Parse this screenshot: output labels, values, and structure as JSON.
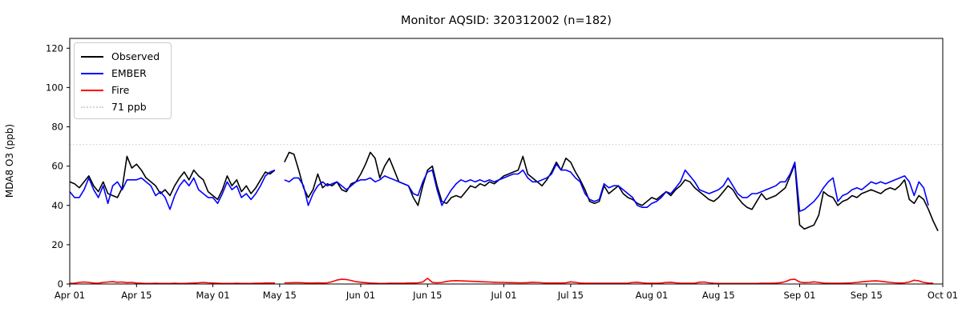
{
  "title": "Monitor AQSID: 320312002 (n=182)",
  "ylabel": "MDA8 O3 (ppb)",
  "legend": {
    "items": [
      {
        "label": "Observed",
        "color": "#000000",
        "dash": "solid"
      },
      {
        "label": "EMBER",
        "color": "#0000ff",
        "dash": "solid"
      },
      {
        "label": "Fire",
        "color": "#ff0000",
        "dash": "solid"
      },
      {
        "label": "71 ppb",
        "color": "#d3d3d3",
        "dash": "dotted"
      }
    ]
  },
  "chart_data": {
    "type": "line",
    "title": "Monitor AQSID: 320312002 (n=182)",
    "xlabel": "",
    "ylabel": "MDA8 O3 (ppb)",
    "ylim": [
      0,
      125
    ],
    "yticks": [
      0,
      20,
      40,
      60,
      80,
      100,
      120
    ],
    "x_days_total": 183,
    "x_start_date": "Apr 01",
    "xtick_labels": [
      "Apr 01",
      "Apr 15",
      "May 01",
      "May 15",
      "Jun 01",
      "Jun 15",
      "Jul 01",
      "Jul 15",
      "Aug 01",
      "Aug 15",
      "Sep 01",
      "Sep 15",
      "Oct 01"
    ],
    "xtick_days": [
      0,
      14,
      30,
      44,
      61,
      75,
      91,
      105,
      122,
      136,
      153,
      167,
      183
    ],
    "grid": false,
    "legend_position": "upper left",
    "threshold": {
      "value": 71,
      "label": "71 ppb",
      "color": "#d3d3d3",
      "style": "dotted"
    },
    "missing_day": "May 15",
    "series": [
      {
        "name": "Observed",
        "color": "#000000",
        "values": [
          52,
          51,
          49,
          52,
          55,
          50,
          47,
          52,
          46,
          45,
          44,
          49,
          65,
          59,
          61,
          58,
          54,
          52,
          50,
          46,
          48,
          45,
          50,
          54,
          57,
          53,
          58,
          55,
          53,
          47,
          45,
          43,
          48,
          55,
          50,
          53,
          47,
          50,
          46,
          49,
          53,
          57,
          56,
          58,
          null,
          62,
          67,
          66,
          58,
          49,
          44,
          48,
          56,
          49,
          51,
          50,
          52,
          48,
          47,
          51,
          52,
          56,
          61,
          67,
          64,
          54,
          60,
          64,
          58,
          52,
          51,
          50,
          44,
          40,
          50,
          58,
          60,
          50,
          42,
          41,
          44,
          45,
          44,
          47,
          50,
          49,
          51,
          50,
          52,
          51,
          53,
          55,
          56,
          57,
          58,
          65,
          56,
          54,
          52,
          50,
          53,
          57,
          62,
          58,
          64,
          62,
          57,
          53,
          48,
          42,
          41,
          42,
          50,
          46,
          48,
          50,
          46,
          44,
          43,
          41,
          40,
          42,
          44,
          43,
          45,
          47,
          45,
          48,
          50,
          53,
          52,
          49,
          47,
          45,
          43,
          42,
          44,
          47,
          50,
          48,
          44,
          41,
          39,
          38,
          42,
          46,
          43,
          44,
          45,
          47,
          49,
          55,
          61,
          30,
          28,
          29,
          30,
          35,
          47,
          45,
          44,
          40,
          42,
          43,
          45,
          44,
          46,
          47,
          48,
          47,
          46,
          48,
          49,
          48,
          50,
          53,
          43,
          41,
          45,
          43,
          38,
          32,
          27
        ]
      },
      {
        "name": "EMBER",
        "color": "#0000ff",
        "values": [
          47,
          44,
          44,
          48,
          54,
          48,
          44,
          50,
          41,
          50,
          52,
          48,
          53,
          53,
          53,
          54,
          52,
          50,
          45,
          47,
          44,
          38,
          45,
          50,
          53,
          50,
          54,
          48,
          46,
          44,
          44,
          41,
          46,
          52,
          48,
          50,
          44,
          46,
          43,
          46,
          50,
          55,
          57,
          58,
          null,
          53,
          52,
          54,
          54,
          50,
          40,
          46,
          50,
          52,
          50,
          51,
          52,
          50,
          48,
          50,
          52,
          53,
          53,
          54,
          52,
          53,
          55,
          54,
          53,
          52,
          51,
          50,
          46,
          45,
          52,
          57,
          58,
          48,
          40,
          44,
          48,
          51,
          53,
          52,
          53,
          52,
          53,
          52,
          53,
          52,
          53,
          54,
          55,
          56,
          56,
          58,
          54,
          52,
          52,
          53,
          54,
          56,
          61,
          58,
          58,
          57,
          54,
          52,
          46,
          43,
          42,
          43,
          51,
          49,
          50,
          50,
          48,
          46,
          44,
          40,
          39,
          39,
          41,
          42,
          44,
          47,
          46,
          49,
          52,
          58,
          55,
          52,
          48,
          47,
          46,
          47,
          48,
          50,
          54,
          50,
          46,
          44,
          44,
          46,
          46,
          47,
          48,
          49,
          50,
          52,
          52,
          56,
          62,
          37,
          38,
          40,
          42,
          45,
          49,
          52,
          54,
          42,
          45,
          46,
          48,
          49,
          48,
          50,
          52,
          51,
          52,
          51,
          52,
          53,
          54,
          55,
          52,
          45,
          52,
          49,
          40,
          null,
          null
        ]
      },
      {
        "name": "Fire",
        "color": "#ff0000",
        "values": [
          0.3,
          0.4,
          0.8,
          1.0,
          0.8,
          0.5,
          0.4,
          0.8,
          1.0,
          1.2,
          0.9,
          1.0,
          0.7,
          0.8,
          0.5,
          0.4,
          0.3,
          0.3,
          0.4,
          0.3,
          0.3,
          0.3,
          0.4,
          0.3,
          0.3,
          0.4,
          0.5,
          0.6,
          0.8,
          0.6,
          0.5,
          0.4,
          0.3,
          0.3,
          0.3,
          0.4,
          0.3,
          0.3,
          0.3,
          0.4,
          0.4,
          0.5,
          0.5,
          0.5,
          null,
          0.6,
          0.6,
          0.7,
          0.7,
          0.6,
          0.5,
          0.5,
          0.6,
          0.5,
          0.6,
          1.2,
          2.0,
          2.4,
          2.3,
          1.8,
          1.2,
          0.9,
          0.7,
          0.5,
          0.4,
          0.3,
          0.3,
          0.4,
          0.4,
          0.4,
          0.4,
          0.5,
          0.5,
          0.6,
          1.0,
          2.9,
          0.8,
          0.6,
          0.8,
          1.3,
          1.6,
          1.7,
          1.6,
          1.5,
          1.4,
          1.3,
          1.2,
          1.1,
          1.0,
          0.9,
          0.8,
          0.8,
          0.7,
          0.7,
          0.6,
          0.6,
          0.7,
          0.9,
          0.8,
          0.6,
          0.5,
          0.5,
          0.5,
          0.5,
          0.6,
          1.1,
          0.8,
          0.5,
          0.4,
          0.4,
          0.4,
          0.4,
          0.4,
          0.4,
          0.4,
          0.4,
          0.4,
          0.4,
          0.8,
          0.9,
          0.6,
          0.4,
          0.4,
          0.4,
          0.5,
          0.8,
          0.9,
          0.6,
          0.4,
          0.4,
          0.4,
          0.4,
          0.9,
          1.0,
          0.6,
          0.4,
          0.3,
          0.3,
          0.3,
          0.3,
          0.3,
          0.3,
          0.3,
          0.3,
          0.3,
          0.4,
          0.4,
          0.4,
          0.5,
          0.7,
          1.2,
          2.2,
          2.4,
          1.0,
          0.7,
          0.8,
          1.1,
          0.8,
          0.5,
          0.4,
          0.4,
          0.4,
          0.4,
          0.5,
          0.6,
          0.8,
          1.1,
          1.3,
          1.5,
          1.6,
          1.4,
          1.1,
          0.8,
          0.6,
          0.5,
          0.6,
          1.0,
          1.9,
          1.6,
          0.8,
          0.5,
          0.4,
          null
        ]
      }
    ]
  }
}
